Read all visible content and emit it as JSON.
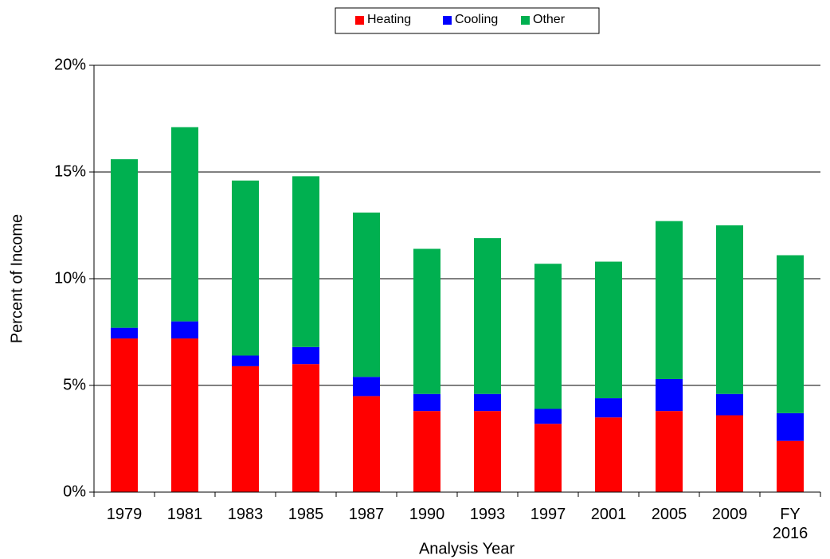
{
  "chart_data": {
    "type": "bar",
    "stacked": true,
    "xlabel": "Analysis Year",
    "ylabel": "Percent of Income",
    "categories": [
      "1979",
      "1981",
      "1983",
      "1985",
      "1987",
      "1990",
      "1993",
      "1997",
      "2001",
      "2005",
      "2009",
      "FY 2016"
    ],
    "series": [
      {
        "name": "Heating",
        "color": "#ff0000",
        "values": [
          7.2,
          7.2,
          5.9,
          6.0,
          4.5,
          3.8,
          3.8,
          3.2,
          3.5,
          3.8,
          3.6,
          2.4
        ]
      },
      {
        "name": "Cooling",
        "color": "#0000ff",
        "values": [
          0.5,
          0.8,
          0.5,
          0.8,
          0.9,
          0.8,
          0.8,
          0.7,
          0.9,
          1.5,
          1.0,
          1.3
        ]
      },
      {
        "name": "Other",
        "color": "#00b050",
        "values": [
          7.9,
          9.1,
          8.2,
          8.0,
          7.7,
          6.8,
          7.3,
          6.8,
          6.4,
          7.4,
          7.9,
          7.4
        ]
      }
    ],
    "ylim": [
      0,
      20
    ],
    "yticks": [
      {
        "value": 0,
        "label": "0%"
      },
      {
        "value": 5,
        "label": "5%"
      },
      {
        "value": 10,
        "label": "10%"
      },
      {
        "value": 15,
        "label": "15%"
      },
      {
        "value": 20,
        "label": "20%"
      }
    ],
    "grid": true,
    "legend": "top"
  }
}
